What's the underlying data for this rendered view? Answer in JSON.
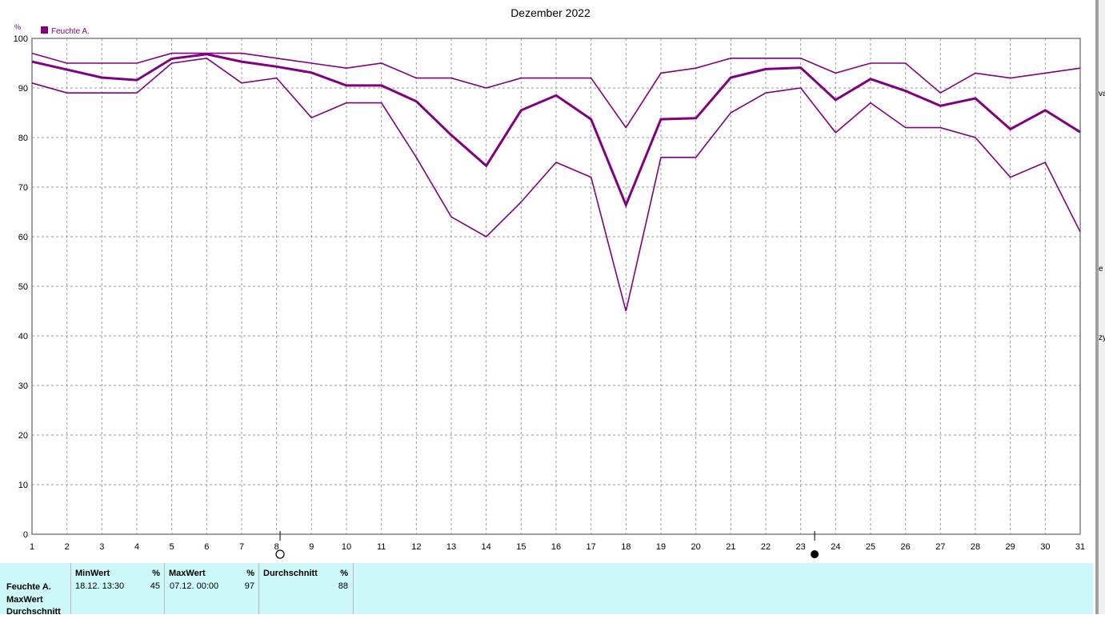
{
  "window": {
    "right_edge_fragments": [
      "va",
      "e",
      "zy"
    ]
  },
  "chart_data": {
    "type": "line",
    "title": "Dezember 2022",
    "ylabel": "%",
    "xlabel": "",
    "ylim": [
      0,
      100
    ],
    "yticks": [
      0,
      10,
      20,
      30,
      40,
      50,
      60,
      70,
      80,
      90,
      100
    ],
    "xlim": [
      1,
      31
    ],
    "x": [
      1,
      2,
      3,
      4,
      5,
      6,
      7,
      8,
      9,
      10,
      11,
      12,
      13,
      14,
      15,
      16,
      17,
      18,
      19,
      20,
      21,
      22,
      23,
      24,
      25,
      26,
      27,
      28,
      29,
      30,
      31
    ],
    "grid": true,
    "legend": {
      "placement": "top-left",
      "entries": [
        "Feuchte A."
      ]
    },
    "series_color": "#800080",
    "series": [
      {
        "name": "Feuchte A.",
        "role": "max",
        "values": [
          97,
          95,
          95,
          95,
          97,
          97,
          97,
          96,
          95,
          94,
          95,
          92,
          92,
          90,
          92,
          92,
          92,
          82,
          93,
          94,
          96,
          96,
          96,
          93,
          95,
          95,
          89,
          93,
          92,
          93,
          94
        ]
      },
      {
        "name": "Feuchte A.",
        "role": "average",
        "values": [
          95.3,
          93.7,
          92.1,
          91.6,
          95.9,
          96.8,
          95.3,
          94.3,
          93.1,
          90.5,
          90.5,
          87.3,
          80.5,
          74.3,
          85.5,
          88.5,
          83.7,
          66.4,
          83.7,
          83.9,
          92.1,
          93.8,
          94.1,
          87.6,
          91.8,
          89.4,
          86.4,
          87.9,
          81.7,
          85.5,
          81.1
        ]
      },
      {
        "name": "Feuchte A.",
        "role": "min",
        "values": [
          91,
          89,
          89,
          89,
          95,
          96,
          91,
          92,
          84,
          87,
          87,
          76,
          64,
          60,
          67,
          75,
          72,
          45,
          76,
          76,
          85,
          89,
          90,
          81,
          87,
          82,
          82,
          80,
          72,
          75,
          61
        ]
      }
    ],
    "moon_phases": [
      {
        "day": 8.1,
        "phase": "full-moon"
      },
      {
        "day": 23.4,
        "phase": "new-moon"
      }
    ]
  },
  "stats": {
    "row_labels": [
      "Feuchte A.",
      "MaxWert",
      "Durchschnitt"
    ],
    "columns": [
      {
        "header": "MinWert",
        "unit": "%",
        "datetime": "18.12.  13:30",
        "value": "45"
      },
      {
        "header": "MaxWert",
        "unit": "%",
        "datetime": "07.12.  00:00",
        "value": "97"
      },
      {
        "header": "Durchschnitt",
        "unit": "%",
        "datetime": "",
        "value": "88"
      }
    ]
  }
}
